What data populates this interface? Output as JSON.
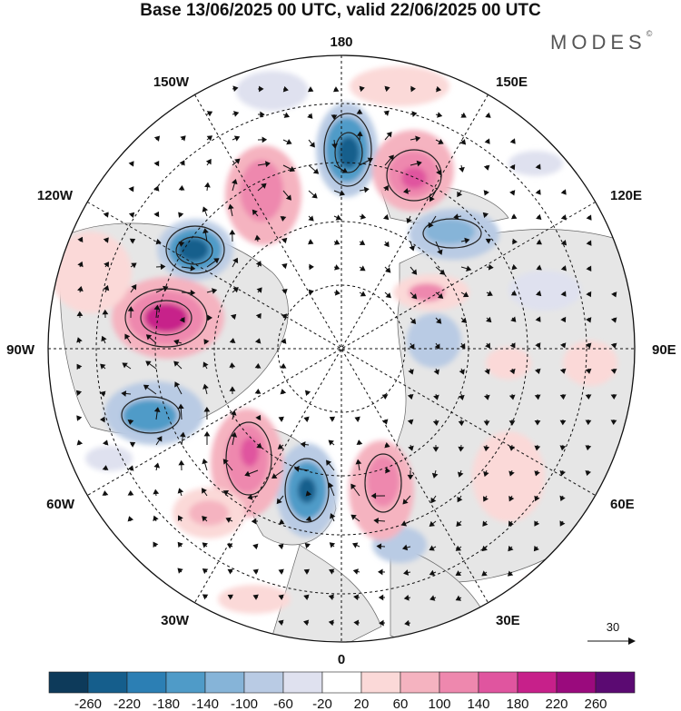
{
  "title": "Base 13/06/2025 00 UTC, valid 22/06/2025 00 UTC",
  "brand": "MODES",
  "brand_mark": "©",
  "projection": "north-polar-stereographic",
  "longitude_labels": {
    "top": "180",
    "bottom": "0",
    "left": "90W",
    "right": "90E",
    "upper_left_1": "150W",
    "upper_left_2": "120W",
    "upper_right_1": "150E",
    "upper_right_2": "120E",
    "lower_left_1": "60W",
    "lower_left_2": "30W",
    "lower_right_1": "60E",
    "lower_right_2": "30E"
  },
  "reference_vector": {
    "label": "30"
  },
  "colorbar": {
    "ticks": [
      "-260",
      "-220",
      "-180",
      "-140",
      "-100",
      "-60",
      "-20",
      "20",
      "60",
      "100",
      "140",
      "180",
      "220",
      "260"
    ],
    "colors": [
      "#0d3a5a",
      "#155e8c",
      "#2c7fb4",
      "#4f9bc8",
      "#86b4d8",
      "#b9cbe4",
      "#dfe1ef",
      "#ffffff",
      "#fbd9d8",
      "#f5b3c0",
      "#ee88ae",
      "#e0559f",
      "#c7208a",
      "#9a0a7d",
      "#5b0a72"
    ]
  },
  "field_colors": {
    "land": "#e6e6e6",
    "ocean": "#ffffff",
    "coast": "#555555",
    "grid": "#111111"
  }
}
